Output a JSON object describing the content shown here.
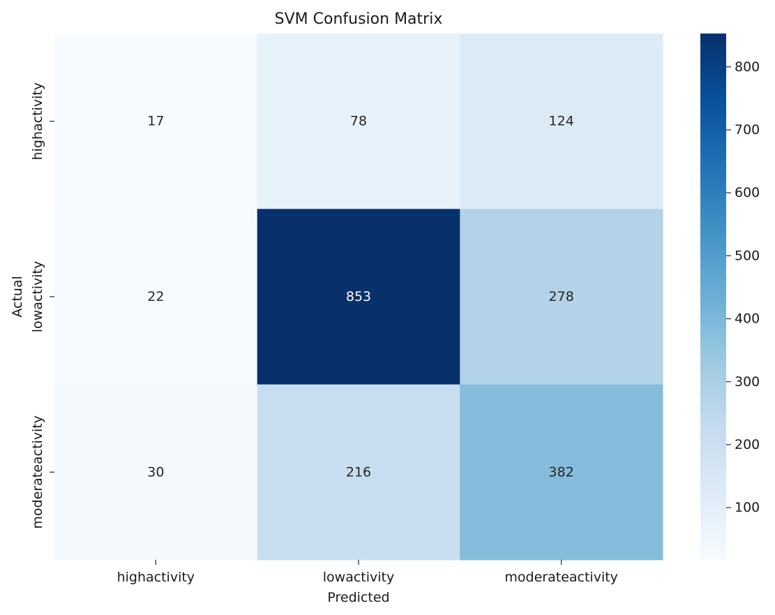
{
  "chart_data": {
    "type": "heatmap",
    "title": "SVM Confusion Matrix",
    "xlabel": "Predicted",
    "ylabel": "Actual",
    "x_categories": [
      "highactivity",
      "lowactivity",
      "moderateactivity"
    ],
    "y_categories": [
      "highactivity",
      "lowactivity",
      "moderateactivity"
    ],
    "values": [
      [
        17,
        78,
        124
      ],
      [
        22,
        853,
        278
      ],
      [
        30,
        216,
        382
      ]
    ],
    "colormap": "Blues",
    "colorbar": {
      "min": 17,
      "max": 853,
      "ticks": [
        100,
        200,
        300,
        400,
        500,
        600,
        700,
        800
      ]
    },
    "grid": false
  }
}
